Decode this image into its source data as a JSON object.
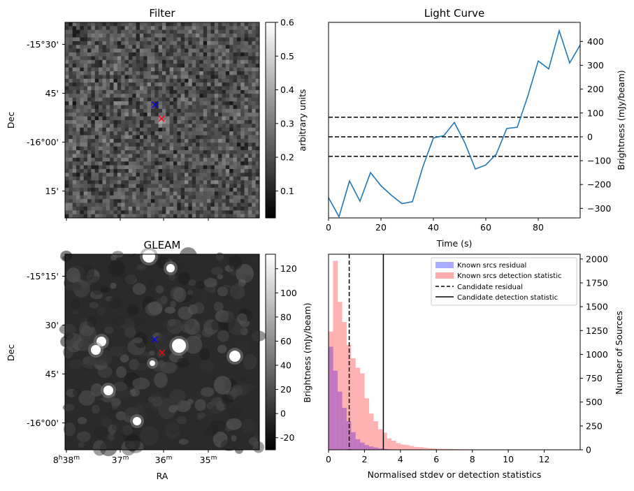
{
  "chart_data": [
    {
      "type": "heatmap",
      "title": "Filter",
      "ylabel": "Dec",
      "xlabel": "",
      "ytick_labels": [
        "-15°30'",
        "45'",
        "-16°00'",
        "15'"
      ],
      "colorbar": {
        "label": "arbitrary units",
        "range": [
          0.02,
          0.6
        ],
        "ticks": [
          0.1,
          0.2,
          0.3,
          0.4,
          0.5,
          0.6
        ]
      },
      "markers": [
        {
          "symbol": "x",
          "color": "#0000ff"
        },
        {
          "symbol": "x",
          "color": "#ff0000"
        }
      ],
      "colors": {
        "colormap": "gray"
      }
    },
    {
      "type": "line",
      "title": "Light Curve",
      "xlabel": "Time (s)",
      "ylabel": "Brightness (mJy/beam)",
      "xlim": [
        0,
        96
      ],
      "ylim": [
        -340,
        480
      ],
      "x_ticks": [
        0,
        20,
        40,
        60,
        80
      ],
      "y_ticks": [
        -300,
        -200,
        -100,
        0,
        100,
        200,
        300,
        400
      ],
      "series": [
        {
          "x": [
            0,
            4,
            8,
            12,
            16,
            20,
            24,
            28,
            32,
            36,
            40,
            44,
            48,
            52,
            56,
            60,
            64,
            68,
            72,
            76,
            80,
            84,
            88,
            92,
            96
          ],
          "values": [
            -255,
            -335,
            -185,
            -270,
            -150,
            -205,
            -245,
            -280,
            -272,
            -125,
            -5,
            5,
            60,
            -25,
            -135,
            -118,
            -72,
            35,
            40,
            170,
            318,
            285,
            445,
            310,
            385
          ]
        }
      ],
      "hlines": [
        82,
        0,
        -82
      ],
      "colors": {
        "line": "#1f77b4",
        "hlines": "#000000"
      }
    },
    {
      "type": "heatmap",
      "title": "GLEAM",
      "ylabel": "Dec",
      "xlabel": "RA",
      "ytick_labels": [
        "-15°15'",
        "30'",
        "45'",
        "-16°00'"
      ],
      "xtick_labels": [
        "8h38m",
        "37m",
        "36m",
        "35m"
      ],
      "colorbar": {
        "label": "Brightness (mJy/beam)",
        "range": [
          -30,
          132
        ],
        "ticks": [
          -20,
          0,
          20,
          40,
          60,
          80,
          100,
          120
        ]
      },
      "markers": [
        {
          "symbol": "x",
          "color": "#0000ff"
        },
        {
          "symbol": "x",
          "color": "#ff0000"
        }
      ],
      "colors": {
        "colormap": "gray"
      }
    },
    {
      "type": "bar",
      "title": "",
      "xlabel": "Normalised stdev or detection statistics",
      "ylabel": "Number of Sources",
      "xlim": [
        0,
        14
      ],
      "ylim": [
        0,
        2050
      ],
      "x_ticks": [
        0,
        2,
        4,
        6,
        8,
        10,
        12
      ],
      "y_ticks": [
        0,
        250,
        500,
        750,
        1000,
        1250,
        1500,
        1750,
        2000
      ],
      "bin_width": 0.25,
      "series": [
        {
          "name": "Known srcs residual",
          "bin_start": 0,
          "values": [
            1080,
            830,
            610,
            440,
            300,
            185,
            110,
            75,
            50,
            35,
            25,
            15,
            10,
            6,
            4,
            3
          ]
        },
        {
          "name": "Known srcs detection statistic",
          "bin_start": 0,
          "values": [
            1240,
            1980,
            1550,
            1340,
            1100,
            960,
            860,
            800,
            540,
            380,
            300,
            215,
            180,
            120,
            95,
            70,
            55,
            50,
            40,
            30,
            28,
            22,
            18,
            15,
            12,
            10,
            9,
            8,
            7,
            6,
            6,
            5,
            5,
            4,
            4,
            3,
            3,
            3,
            2,
            2,
            2,
            2,
            2,
            2,
            2,
            1,
            1,
            1,
            1,
            1,
            1,
            1,
            1,
            1
          ]
        }
      ],
      "vlines": [
        {
          "name": "Candidate residual",
          "x": 1.15,
          "style": "dashed"
        },
        {
          "name": "Candidate detection statistic",
          "x": 3.05,
          "style": "solid"
        }
      ],
      "legend": "top-right",
      "colors": {
        "residual": "#aaaaff",
        "detection": "#ffaaaa",
        "lines": "#000000"
      }
    }
  ]
}
